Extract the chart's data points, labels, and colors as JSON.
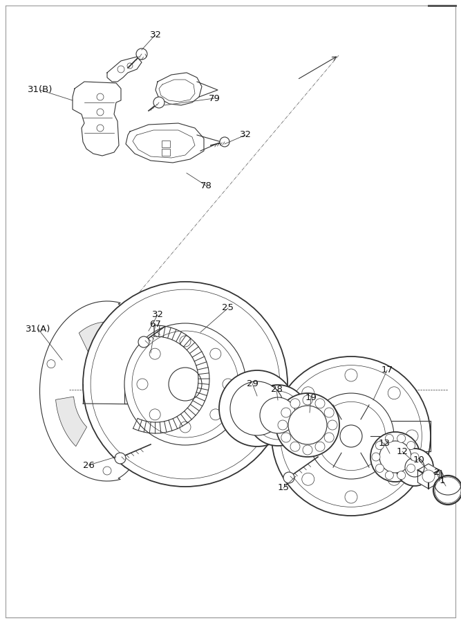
{
  "bg_color": "#ffffff",
  "line_color": "#333333",
  "line_width": 0.8,
  "thin_line": 0.5,
  "fig_width": 6.67,
  "fig_height": 9.0,
  "dpi": 100,
  "border_color": "#aaaaaa",
  "border_lw": 0.6
}
